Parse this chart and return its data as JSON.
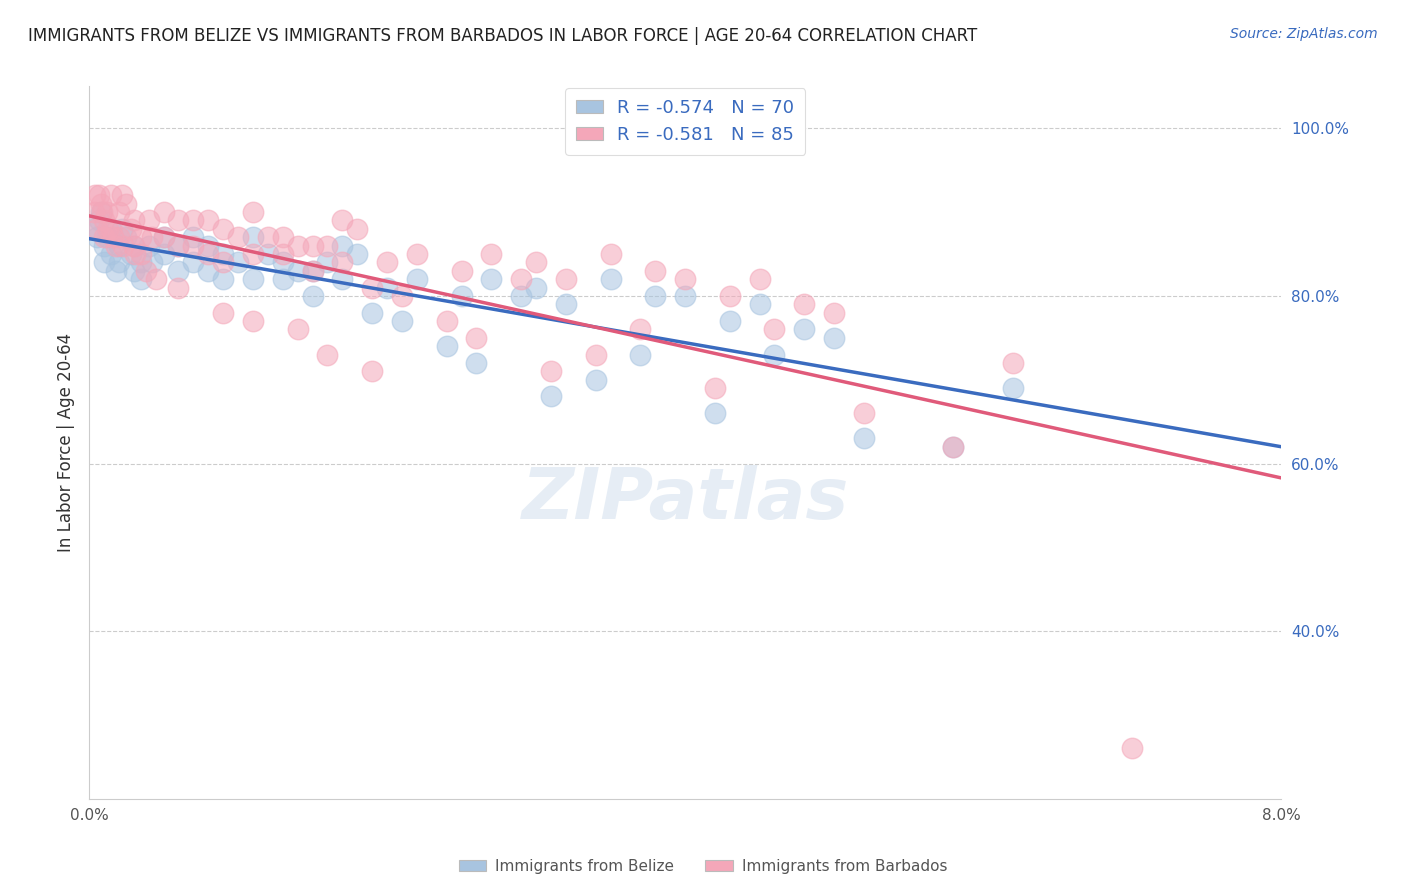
{
  "title": "IMMIGRANTS FROM BELIZE VS IMMIGRANTS FROM BARBADOS IN LABOR FORCE | AGE 20-64 CORRELATION CHART",
  "source": "Source: ZipAtlas.com",
  "ylabel": "In Labor Force | Age 20-64",
  "xlim": [
    0.0,
    0.08
  ],
  "ylim": [
    0.2,
    1.05
  ],
  "xtick_vals": [
    0.0,
    0.02,
    0.04,
    0.06,
    0.08
  ],
  "xtick_labels": [
    "0.0%",
    "",
    "",
    "",
    "8.0%"
  ],
  "ytick_vals": [
    1.0,
    0.8,
    0.6,
    0.4
  ],
  "ytick_labels": [
    "100.0%",
    "80.0%",
    "60.0%",
    "40.0%"
  ],
  "belize_color": "#a8c4e0",
  "barbados_color": "#f4a7b9",
  "belize_line_color": "#3a6bbf",
  "barbados_line_color": "#e05a7a",
  "belize_R": -0.574,
  "belize_N": 70,
  "barbados_R": -0.581,
  "barbados_N": 85,
  "watermark": "ZIPatlas",
  "belize_x": [
    0.0003,
    0.0005,
    0.0007,
    0.0008,
    0.001,
    0.001,
    0.0012,
    0.0015,
    0.0015,
    0.0018,
    0.002,
    0.002,
    0.0022,
    0.0025,
    0.0028,
    0.003,
    0.003,
    0.0035,
    0.0035,
    0.004,
    0.0042,
    0.005,
    0.005,
    0.006,
    0.006,
    0.007,
    0.007,
    0.008,
    0.008,
    0.009,
    0.009,
    0.01,
    0.011,
    0.011,
    0.012,
    0.013,
    0.013,
    0.014,
    0.015,
    0.015,
    0.016,
    0.017,
    0.017,
    0.018,
    0.019,
    0.02,
    0.021,
    0.022,
    0.024,
    0.025,
    0.026,
    0.027,
    0.029,
    0.03,
    0.031,
    0.032,
    0.034,
    0.035,
    0.037,
    0.038,
    0.04,
    0.042,
    0.043,
    0.045,
    0.046,
    0.048,
    0.05,
    0.052,
    0.058,
    0.062
  ],
  "belize_y": [
    0.88,
    0.87,
    0.89,
    0.9,
    0.86,
    0.84,
    0.87,
    0.85,
    0.88,
    0.83,
    0.86,
    0.84,
    0.88,
    0.87,
    0.85,
    0.86,
    0.83,
    0.84,
    0.82,
    0.86,
    0.84,
    0.87,
    0.85,
    0.86,
    0.83,
    0.87,
    0.84,
    0.86,
    0.83,
    0.85,
    0.82,
    0.84,
    0.87,
    0.82,
    0.85,
    0.84,
    0.82,
    0.83,
    0.83,
    0.8,
    0.84,
    0.86,
    0.82,
    0.85,
    0.78,
    0.81,
    0.77,
    0.82,
    0.74,
    0.8,
    0.72,
    0.82,
    0.8,
    0.81,
    0.68,
    0.79,
    0.7,
    0.82,
    0.73,
    0.8,
    0.8,
    0.66,
    0.77,
    0.79,
    0.73,
    0.76,
    0.75,
    0.63,
    0.62,
    0.69
  ],
  "barbados_x": [
    0.0003,
    0.0005,
    0.0007,
    0.0008,
    0.001,
    0.001,
    0.0012,
    0.0015,
    0.0015,
    0.0018,
    0.002,
    0.002,
    0.0022,
    0.0025,
    0.0028,
    0.003,
    0.003,
    0.0035,
    0.0035,
    0.004,
    0.0042,
    0.005,
    0.005,
    0.006,
    0.006,
    0.007,
    0.007,
    0.008,
    0.008,
    0.009,
    0.009,
    0.01,
    0.011,
    0.011,
    0.012,
    0.013,
    0.013,
    0.014,
    0.015,
    0.015,
    0.016,
    0.017,
    0.017,
    0.018,
    0.019,
    0.02,
    0.021,
    0.022,
    0.024,
    0.025,
    0.026,
    0.027,
    0.029,
    0.03,
    0.031,
    0.032,
    0.034,
    0.035,
    0.037,
    0.038,
    0.04,
    0.042,
    0.043,
    0.045,
    0.046,
    0.048,
    0.05,
    0.052,
    0.058,
    0.062,
    0.0004,
    0.0009,
    0.0013,
    0.0016,
    0.0023,
    0.0031,
    0.0038,
    0.0045,
    0.006,
    0.009,
    0.011,
    0.014,
    0.016,
    0.019,
    0.07
  ],
  "barbados_y": [
    0.9,
    0.88,
    0.92,
    0.91,
    0.89,
    0.87,
    0.9,
    0.88,
    0.92,
    0.86,
    0.9,
    0.87,
    0.92,
    0.91,
    0.88,
    0.89,
    0.86,
    0.87,
    0.85,
    0.89,
    0.87,
    0.9,
    0.87,
    0.89,
    0.86,
    0.89,
    0.86,
    0.89,
    0.85,
    0.88,
    0.84,
    0.87,
    0.9,
    0.85,
    0.87,
    0.87,
    0.85,
    0.86,
    0.86,
    0.83,
    0.86,
    0.89,
    0.84,
    0.88,
    0.81,
    0.84,
    0.8,
    0.85,
    0.77,
    0.83,
    0.75,
    0.85,
    0.82,
    0.84,
    0.71,
    0.82,
    0.73,
    0.85,
    0.76,
    0.83,
    0.82,
    0.69,
    0.8,
    0.82,
    0.76,
    0.79,
    0.78,
    0.66,
    0.62,
    0.72,
    0.92,
    0.9,
    0.88,
    0.87,
    0.86,
    0.85,
    0.83,
    0.82,
    0.81,
    0.78,
    0.77,
    0.76,
    0.73,
    0.71,
    0.26
  ]
}
